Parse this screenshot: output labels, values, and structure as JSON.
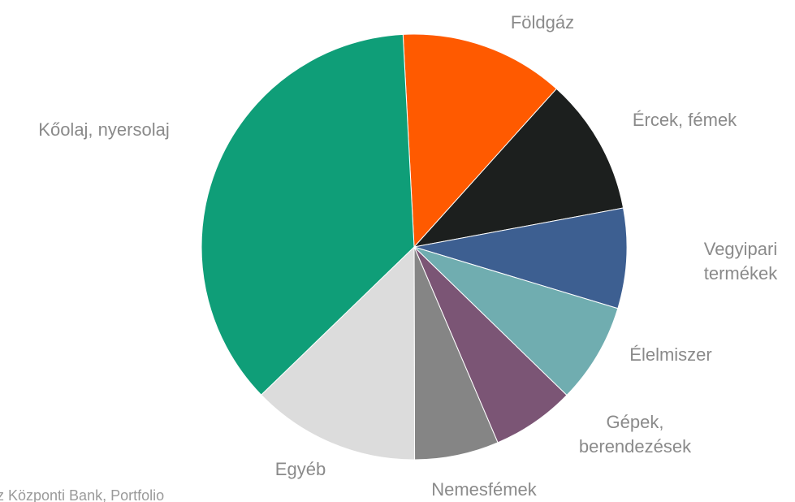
{
  "chart_data": {
    "type": "pie",
    "categories": [
      "Földgáz",
      "Ércek, fémek",
      "Vegyipari termékek",
      "Élelmiszer",
      "Gépek, berendezések",
      "Nemesfémek",
      "Egyéb",
      "Kőolaj, nyersolaj"
    ],
    "values": [
      12.5,
      10.4,
      7.6,
      7.6,
      6.3,
      6.4,
      12.8,
      36.4
    ],
    "colors": [
      "#ff5a00",
      "#1c1f1e",
      "#3d5f91",
      "#70adb0",
      "#7b5575",
      "#858585",
      "#dcdcdc",
      "#0f9e78"
    ],
    "source": "z Központi Bank, Portfolio"
  }
}
